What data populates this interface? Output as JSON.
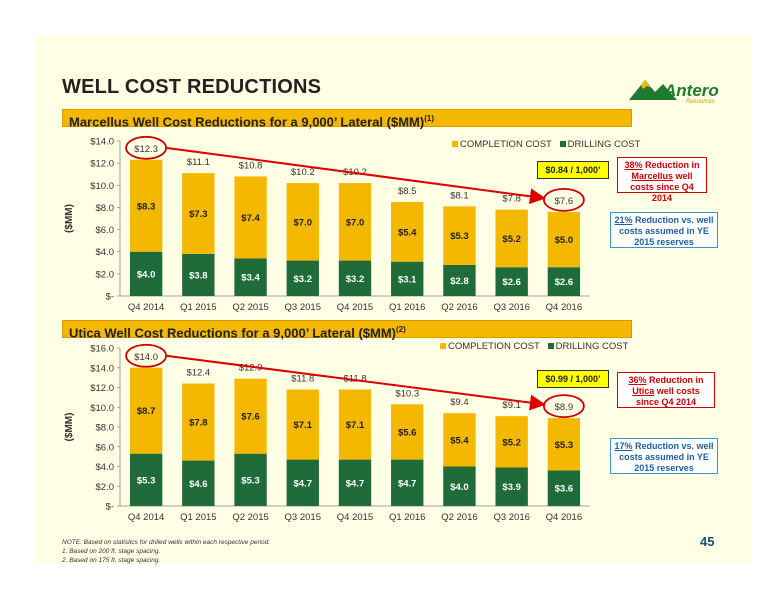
{
  "slide": {
    "title": "WELL COST REDUCTIONS",
    "logo": {
      "name": "Antero",
      "sub": "Resources"
    },
    "page_number": "45",
    "notes": [
      "NOTE: Based on statistics for drilled wells within each respective period.",
      "1.  Based on 200 ft. stage spacing.",
      "2.  Based on 175 ft. stage spacing."
    ],
    "colors": {
      "completion": "#f5b800",
      "drilling": "#1f6b3a",
      "arrow": "#dd0000",
      "circle": "#cc0000"
    }
  },
  "chart_data": [
    {
      "type": "bar",
      "stacked": true,
      "title": "Marcellus Well Cost Reductions for a 9,000’ Lateral ($MM)",
      "title_sup": "(1)",
      "ylabel": "($MM)",
      "ylim": [
        0,
        14
      ],
      "yticks": [
        "$-",
        "$2.0",
        "$4.0",
        "$6.0",
        "$8.0",
        "$10.0",
        "$12.0",
        "$14.0"
      ],
      "categories": [
        "Q4 2014",
        "Q1 2015",
        "Q2 2015",
        "Q3 2015",
        "Q4 2015",
        "Q1 2016",
        "Q2 2016",
        "Q3 2016",
        "Q4 2016"
      ],
      "series": [
        {
          "name": "DRILLING COST",
          "values": [
            4.0,
            3.8,
            3.4,
            3.2,
            3.2,
            3.1,
            2.8,
            2.6,
            2.6
          ],
          "labels": [
            "$4.0",
            "$3.8",
            "$3.4",
            "$3.2",
            "$3.2",
            "$3.1",
            "$2.8",
            "$2.6",
            "$2.6"
          ]
        },
        {
          "name": "COMPLETION COST",
          "values": [
            8.3,
            7.3,
            7.4,
            7.0,
            7.0,
            5.4,
            5.3,
            5.2,
            5.0
          ],
          "labels": [
            "$8.3",
            "$7.3",
            "$7.4",
            "$7.0",
            "$7.0",
            "$5.4",
            "$5.3",
            "$5.2",
            "$5.0"
          ]
        }
      ],
      "totals": [
        12.3,
        11.1,
        10.8,
        10.2,
        10.2,
        8.5,
        8.1,
        7.8,
        7.6
      ],
      "total_labels": [
        "$12.3",
        "$11.1",
        "$10.8",
        "$10.2",
        "$10.2",
        "$8.5",
        "$8.1",
        "$7.8",
        "$7.6"
      ],
      "legend": [
        "COMPLETION COST",
        "DRILLING COST"
      ],
      "callout_rate": "$0.84 / 1,000’",
      "callout_reduction": {
        "pct": "38%",
        "text1": " Reduction in ",
        "basin": "Marcellus",
        "text2": " well costs since Q4 2014"
      },
      "callout_budget": {
        "pct": "21%",
        "text": " Reduction vs. well costs assumed in YE 2015 reserves"
      }
    },
    {
      "type": "bar",
      "stacked": true,
      "title": "Utica Well Cost Reductions for a 9,000’ Lateral ($MM)",
      "title_sup": "(2)",
      "ylabel": "($MM)",
      "ylim": [
        0,
        16
      ],
      "yticks": [
        "$-",
        "$2.0",
        "$4.0",
        "$6.0",
        "$8.0",
        "$10.0",
        "$12.0",
        "$14.0",
        "$16.0"
      ],
      "categories": [
        "Q4 2014",
        "Q1 2015",
        "Q2 2015",
        "Q3 2015",
        "Q4 2015",
        "Q1 2016",
        "Q2 2016",
        "Q3 2016",
        "Q4 2016"
      ],
      "series": [
        {
          "name": "DRILLING COST",
          "values": [
            5.3,
            4.6,
            5.3,
            4.7,
            4.7,
            4.7,
            4.0,
            3.9,
            3.6
          ],
          "labels": [
            "$5.3",
            "$4.6",
            "$5.3",
            "$4.7",
            "$4.7",
            "$4.7",
            "$4.0",
            "$3.9",
            "$3.6"
          ]
        },
        {
          "name": "COMPLETION COST",
          "values": [
            8.7,
            7.8,
            7.6,
            7.1,
            7.1,
            5.6,
            5.4,
            5.2,
            5.3
          ],
          "labels": [
            "$8.7",
            "$7.8",
            "$7.6",
            "$7.1",
            "$7.1",
            "$5.6",
            "$5.4",
            "$5.2",
            "$5.3"
          ]
        }
      ],
      "totals": [
        14.0,
        12.4,
        12.9,
        11.8,
        11.8,
        10.3,
        9.4,
        9.1,
        8.9
      ],
      "total_labels": [
        "$14.0",
        "$12.4",
        "$12.9",
        "$11.8",
        "$11.8",
        "$10.3",
        "$9.4",
        "$9.1",
        "$8.9"
      ],
      "legend": [
        "COMPLETION COST",
        "DRILLING COST"
      ],
      "callout_rate": "$0.99 / 1,000’",
      "callout_reduction": {
        "pct": "36%",
        "text1": " Reduction in ",
        "basin": "Utica",
        "text2": " well costs since Q4 2014"
      },
      "callout_budget": {
        "pct": "17%",
        "text": " Reduction vs. well costs assumed in YE 2015 reserves"
      }
    }
  ]
}
